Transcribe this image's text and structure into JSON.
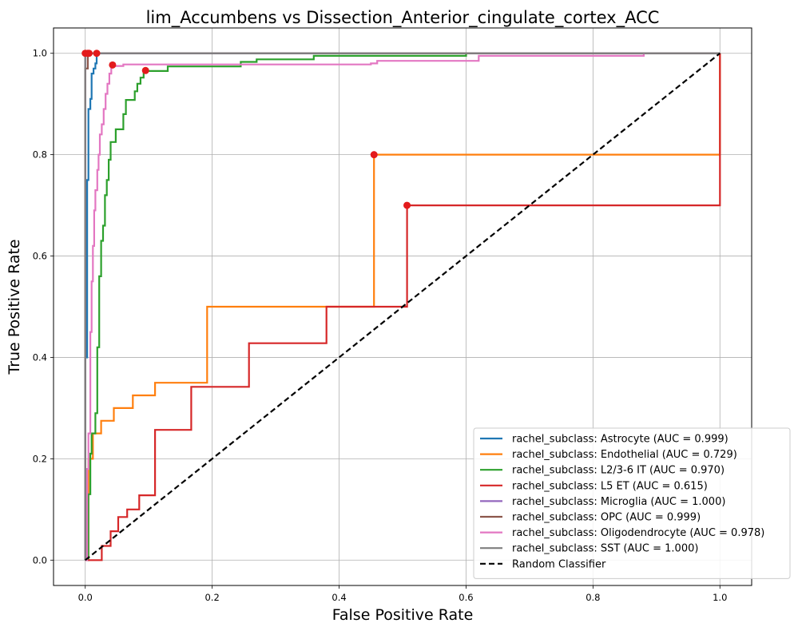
{
  "chart_data": {
    "type": "line",
    "title": "lim_Accumbens vs Dissection_Anterior_cingulate_cortex_ACC",
    "xlabel": "False Positive Rate",
    "ylabel": "True Positive Rate",
    "xlim": [
      -0.05,
      1.05
    ],
    "ylim": [
      -0.05,
      1.05
    ],
    "xticks": [
      0.0,
      0.2,
      0.4,
      0.6,
      0.8,
      1.0
    ],
    "yticks": [
      0.0,
      0.2,
      0.4,
      0.6,
      0.8,
      1.0
    ],
    "tick_labels_x": [
      "0.0",
      "0.2",
      "0.4",
      "0.6",
      "0.8",
      "1.0"
    ],
    "tick_labels_y": [
      "0.0",
      "0.2",
      "0.4",
      "0.6",
      "0.8",
      "1.0"
    ],
    "grid": true,
    "legend_position": "lower-right",
    "series": [
      {
        "name": "rachel_subclass: Astrocyte (AUC = 0.999)",
        "color": "#1f77b4",
        "points": [
          [
            0,
            0
          ],
          [
            0,
            0.4
          ],
          [
            0.003,
            0.4
          ],
          [
            0.003,
            0.75
          ],
          [
            0.005,
            0.75
          ],
          [
            0.005,
            0.89
          ],
          [
            0.008,
            0.89
          ],
          [
            0.008,
            0.91
          ],
          [
            0.01,
            0.91
          ],
          [
            0.01,
            0.96
          ],
          [
            0.013,
            0.96
          ],
          [
            0.013,
            0.97
          ],
          [
            0.016,
            0.97
          ],
          [
            0.016,
            0.98
          ],
          [
            0.018,
            0.98
          ],
          [
            0.018,
            1.0
          ],
          [
            1.0,
            1.0
          ]
        ],
        "marker": [
          0.018,
          1.0
        ]
      },
      {
        "name": "rachel_subclass: Endothelial (AUC = 0.729)",
        "color": "#ff7f0e",
        "points": [
          [
            0,
            0
          ],
          [
            0.005,
            0
          ],
          [
            0.005,
            0.2
          ],
          [
            0.012,
            0.2
          ],
          [
            0.012,
            0.25
          ],
          [
            0.025,
            0.25
          ],
          [
            0.025,
            0.275
          ],
          [
            0.045,
            0.275
          ],
          [
            0.045,
            0.3
          ],
          [
            0.075,
            0.3
          ],
          [
            0.075,
            0.325
          ],
          [
            0.11,
            0.325
          ],
          [
            0.11,
            0.35
          ],
          [
            0.192,
            0.35
          ],
          [
            0.192,
            0.5
          ],
          [
            0.455,
            0.5
          ],
          [
            0.455,
            0.8
          ],
          [
            1.0,
            0.8
          ],
          [
            1.0,
            1.0
          ]
        ],
        "marker": [
          0.455,
          0.8
        ]
      },
      {
        "name": "rachel_subclass: L2/3-6 IT (AUC = 0.970)",
        "color": "#2ca02c",
        "points": [
          [
            0,
            0
          ],
          [
            0.005,
            0
          ],
          [
            0.005,
            0.13
          ],
          [
            0.008,
            0.13
          ],
          [
            0.008,
            0.21
          ],
          [
            0.01,
            0.21
          ],
          [
            0.01,
            0.25
          ],
          [
            0.016,
            0.25
          ],
          [
            0.016,
            0.29
          ],
          [
            0.019,
            0.29
          ],
          [
            0.019,
            0.42
          ],
          [
            0.022,
            0.42
          ],
          [
            0.022,
            0.56
          ],
          [
            0.025,
            0.56
          ],
          [
            0.025,
            0.63
          ],
          [
            0.028,
            0.63
          ],
          [
            0.028,
            0.66
          ],
          [
            0.031,
            0.66
          ],
          [
            0.031,
            0.72
          ],
          [
            0.034,
            0.72
          ],
          [
            0.034,
            0.75
          ],
          [
            0.037,
            0.75
          ],
          [
            0.037,
            0.79
          ],
          [
            0.04,
            0.79
          ],
          [
            0.04,
            0.825
          ],
          [
            0.048,
            0.825
          ],
          [
            0.048,
            0.85
          ],
          [
            0.06,
            0.85
          ],
          [
            0.06,
            0.88
          ],
          [
            0.064,
            0.88
          ],
          [
            0.064,
            0.908
          ],
          [
            0.078,
            0.908
          ],
          [
            0.078,
            0.925
          ],
          [
            0.082,
            0.925
          ],
          [
            0.082,
            0.94
          ],
          [
            0.087,
            0.94
          ],
          [
            0.087,
            0.952
          ],
          [
            0.092,
            0.952
          ],
          [
            0.092,
            0.965
          ],
          [
            0.13,
            0.965
          ],
          [
            0.13,
            0.974
          ],
          [
            0.245,
            0.974
          ],
          [
            0.245,
            0.983
          ],
          [
            0.27,
            0.983
          ],
          [
            0.27,
            0.988
          ],
          [
            0.36,
            0.988
          ],
          [
            0.36,
            0.995
          ],
          [
            0.6,
            0.995
          ],
          [
            0.6,
            1.0
          ],
          [
            1.0,
            1.0
          ]
        ],
        "marker": [
          0.095,
          0.966
        ]
      },
      {
        "name": "rachel_subclass: L5 ET (AUC = 0.615)",
        "color": "#d62728",
        "points": [
          [
            0,
            0
          ],
          [
            0.026,
            0
          ],
          [
            0.026,
            0.028
          ],
          [
            0.04,
            0.028
          ],
          [
            0.04,
            0.057
          ],
          [
            0.052,
            0.057
          ],
          [
            0.052,
            0.085
          ],
          [
            0.066,
            0.085
          ],
          [
            0.066,
            0.1
          ],
          [
            0.085,
            0.1
          ],
          [
            0.085,
            0.128
          ],
          [
            0.11,
            0.128
          ],
          [
            0.11,
            0.257
          ],
          [
            0.167,
            0.257
          ],
          [
            0.167,
            0.342
          ],
          [
            0.258,
            0.342
          ],
          [
            0.258,
            0.428
          ],
          [
            0.38,
            0.428
          ],
          [
            0.38,
            0.5
          ],
          [
            0.507,
            0.5
          ],
          [
            0.507,
            0.7
          ],
          [
            1.0,
            0.7
          ],
          [
            1.0,
            1.0
          ]
        ],
        "marker": [
          0.507,
          0.7
        ]
      },
      {
        "name": "rachel_subclass: Microglia (AUC = 1.000)",
        "color": "#9467bd",
        "points": [
          [
            0,
            0
          ],
          [
            0,
            1.0
          ],
          [
            1.0,
            1.0
          ]
        ],
        "marker": [
          0.004,
          1.0
        ]
      },
      {
        "name": "rachel_subclass: OPC (AUC = 0.999)",
        "color": "#8c564b",
        "points": [
          [
            0,
            0
          ],
          [
            0,
            0.97
          ],
          [
            0.004,
            0.97
          ],
          [
            0.004,
            1.0
          ],
          [
            1.0,
            1.0
          ]
        ],
        "marker": [
          0.006,
          1.0
        ]
      },
      {
        "name": "rachel_subclass: Oligodendrocyte (AUC = 0.978)",
        "color": "#e377c2",
        "points": [
          [
            0,
            0
          ],
          [
            0.003,
            0
          ],
          [
            0.003,
            0.18
          ],
          [
            0.005,
            0.18
          ],
          [
            0.005,
            0.25
          ],
          [
            0.008,
            0.25
          ],
          [
            0.008,
            0.45
          ],
          [
            0.01,
            0.45
          ],
          [
            0.01,
            0.55
          ],
          [
            0.012,
            0.55
          ],
          [
            0.012,
            0.62
          ],
          [
            0.014,
            0.62
          ],
          [
            0.014,
            0.69
          ],
          [
            0.016,
            0.69
          ],
          [
            0.016,
            0.73
          ],
          [
            0.019,
            0.73
          ],
          [
            0.019,
            0.77
          ],
          [
            0.021,
            0.77
          ],
          [
            0.021,
            0.8
          ],
          [
            0.023,
            0.8
          ],
          [
            0.023,
            0.84
          ],
          [
            0.026,
            0.84
          ],
          [
            0.026,
            0.86
          ],
          [
            0.029,
            0.86
          ],
          [
            0.029,
            0.89
          ],
          [
            0.032,
            0.89
          ],
          [
            0.032,
            0.92
          ],
          [
            0.035,
            0.92
          ],
          [
            0.035,
            0.94
          ],
          [
            0.038,
            0.94
          ],
          [
            0.038,
            0.96
          ],
          [
            0.041,
            0.96
          ],
          [
            0.041,
            0.975
          ],
          [
            0.06,
            0.975
          ],
          [
            0.06,
            0.978
          ],
          [
            0.45,
            0.978
          ],
          [
            0.45,
            0.98
          ],
          [
            0.46,
            0.98
          ],
          [
            0.46,
            0.985
          ],
          [
            0.62,
            0.985
          ],
          [
            0.62,
            0.995
          ],
          [
            0.88,
            0.995
          ],
          [
            0.88,
            1.0
          ]
        ],
        "marker": [
          0.043,
          0.977
        ]
      },
      {
        "name": "rachel_subclass: SST (AUC = 1.000)",
        "color": "#7f7f7f",
        "points": [
          [
            0,
            0
          ],
          [
            0,
            1.0
          ],
          [
            1.0,
            1.0
          ]
        ],
        "marker": [
          0.0,
          1.0
        ]
      }
    ],
    "baseline": {
      "name": "Random Classifier",
      "color": "#000000",
      "points": [
        [
          0,
          0
        ],
        [
          1,
          1
        ]
      ]
    },
    "marker_color": "#e31a1c"
  }
}
